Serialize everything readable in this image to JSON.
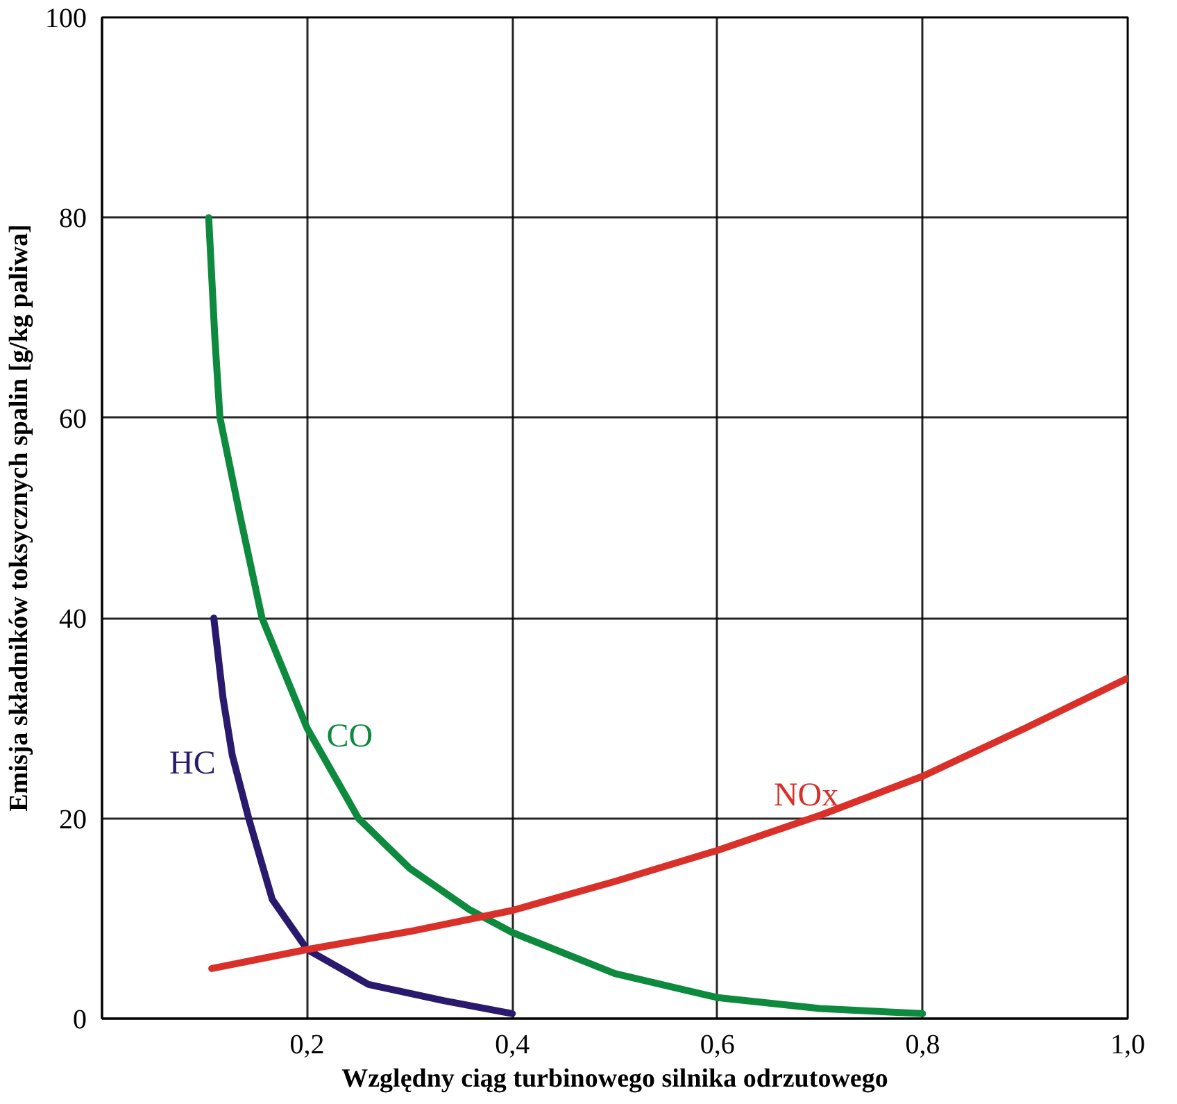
{
  "chart_data": {
    "type": "line",
    "xlabel": "Względny ciąg turbinowego silnika odrzutowego",
    "ylabel": "Emisja składników toksycznych spalin [g/kg paliwa]",
    "xlim": [
      0,
      1.0
    ],
    "ylim": [
      0,
      100
    ],
    "xticks": [
      {
        "value": 0.2,
        "label": "0,2"
      },
      {
        "value": 0.4,
        "label": "0,4"
      },
      {
        "value": 0.6,
        "label": "0,6"
      },
      {
        "value": 0.8,
        "label": "0,8"
      },
      {
        "value": 1.0,
        "label": "1,0"
      }
    ],
    "yticks": [
      0,
      20,
      40,
      60,
      80,
      100
    ],
    "grid": true,
    "marker": "none",
    "line_style": "solid",
    "series": [
      {
        "name": "HC",
        "color": "#2a1a6e",
        "x": [
          0.109,
          0.118,
          0.127,
          0.143,
          0.166,
          0.2,
          0.26,
          0.333,
          0.4
        ],
        "values": [
          40,
          32,
          26.3,
          20,
          11.9,
          6.9,
          3.4,
          1.8,
          0.5
        ]
      },
      {
        "name": "CO",
        "color": "#0d8a3e",
        "x": [
          0.104,
          0.11,
          0.115,
          0.135,
          0.156,
          0.2,
          0.25,
          0.3,
          0.358,
          0.4,
          0.5,
          0.6,
          0.7,
          0.8
        ],
        "values": [
          80,
          68,
          60,
          50,
          40,
          29,
          20,
          15,
          10.9,
          8.6,
          4.5,
          2.1,
          1.0,
          0.5
        ]
      },
      {
        "name": "NOx",
        "color": "#d9302a",
        "x": [
          0.107,
          0.2,
          0.3,
          0.4,
          0.5,
          0.6,
          0.7,
          0.8,
          0.9,
          1.0
        ],
        "values": [
          5.0,
          6.9,
          8.7,
          10.8,
          13.7,
          16.8,
          20.3,
          24.2,
          29,
          34
        ]
      }
    ]
  }
}
